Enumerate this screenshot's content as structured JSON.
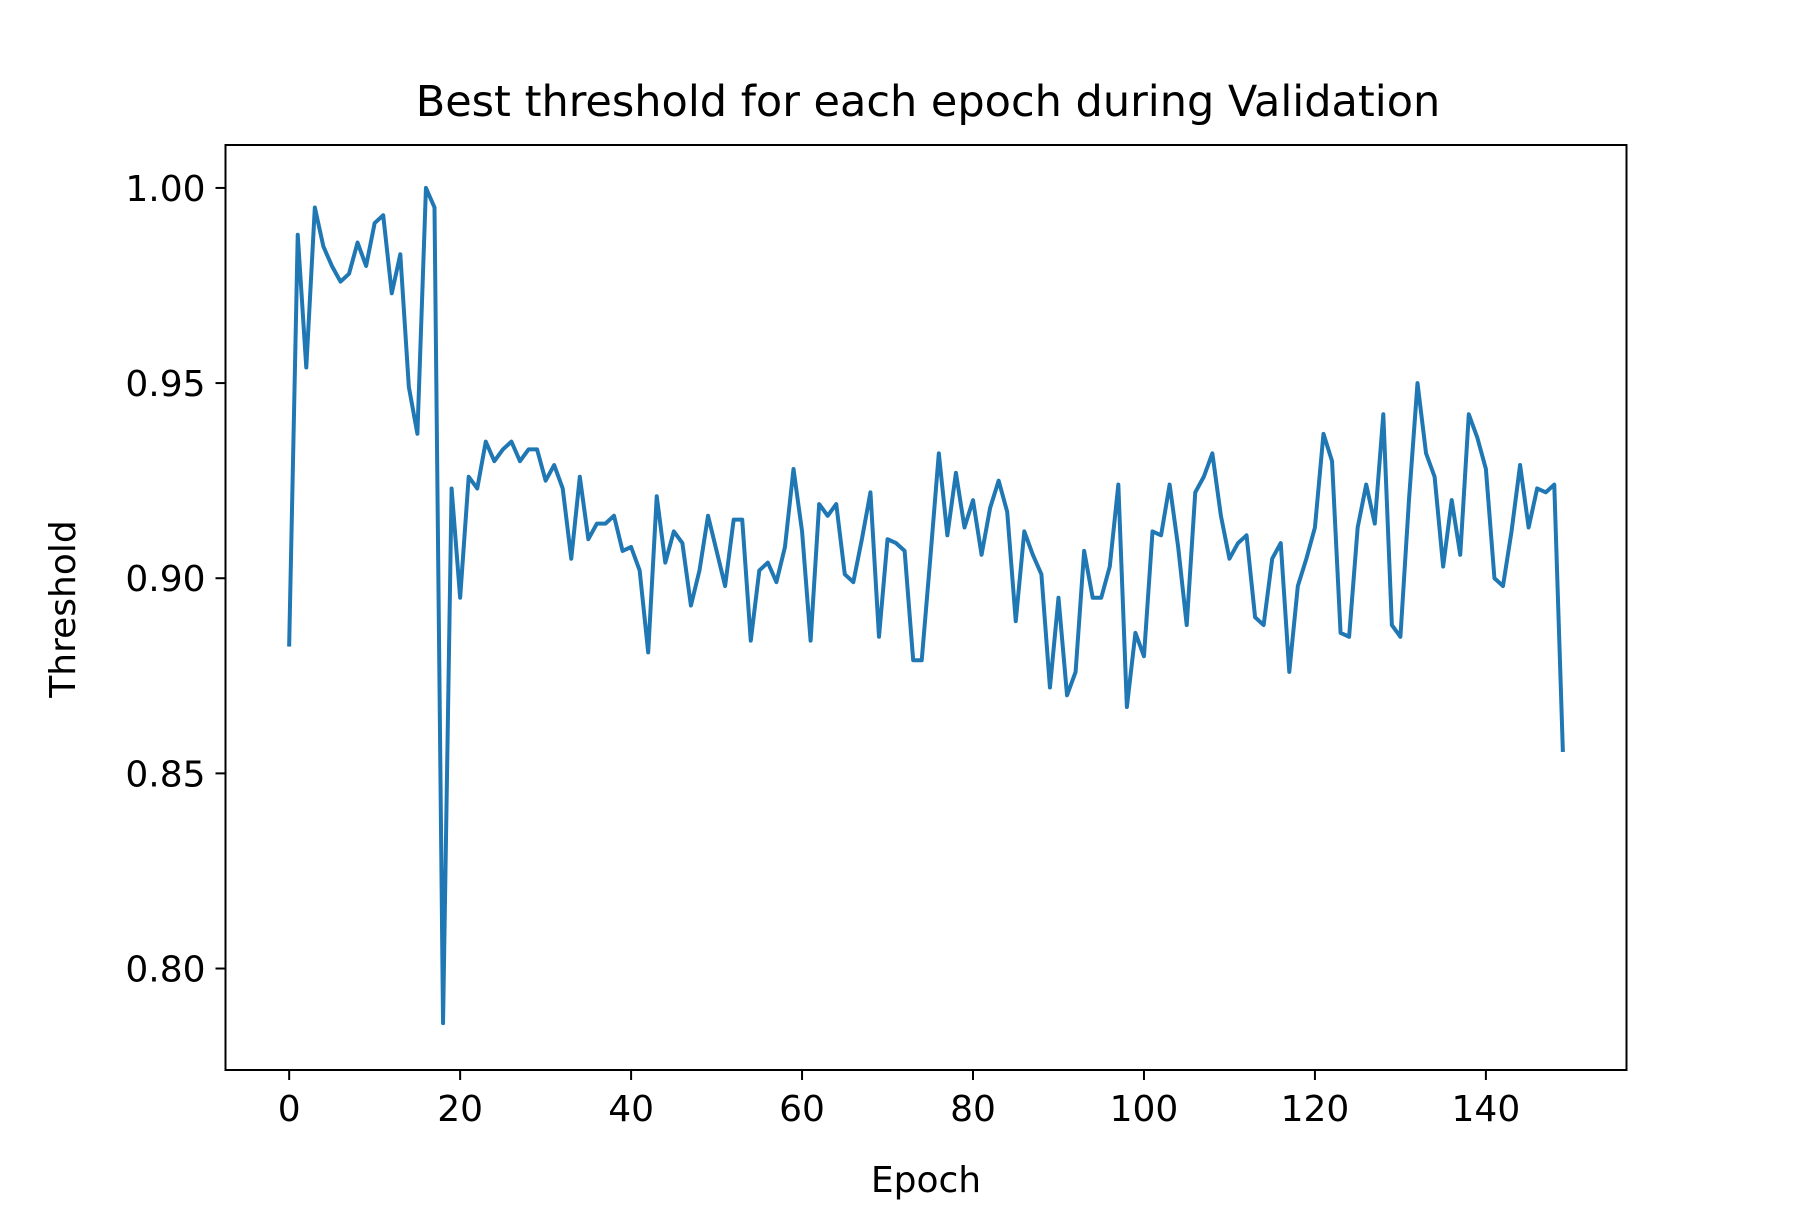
{
  "chart_data": {
    "type": "line",
    "title": "Best threshold for each epoch during Validation",
    "xlabel": "Epoch",
    "ylabel": "Threshold",
    "xlim": [
      -7.45,
      156.45
    ],
    "ylim": [
      0.774,
      1.011
    ],
    "xticks": [
      0,
      20,
      40,
      60,
      80,
      100,
      120,
      140
    ],
    "xtick_labels": [
      "0",
      "20",
      "40",
      "60",
      "80",
      "100",
      "120",
      "140"
    ],
    "yticks": [
      0.8,
      0.85,
      0.9,
      0.95,
      1.0
    ],
    "ytick_labels": [
      "0.80",
      "0.85",
      "0.90",
      "0.95",
      "1.00"
    ],
    "grid": false,
    "legend": "none",
    "series": [
      {
        "color": "#1f77b4",
        "x": [
          0,
          1,
          2,
          3,
          4,
          5,
          6,
          7,
          8,
          9,
          10,
          11,
          12,
          13,
          14,
          15,
          16,
          17,
          18,
          19,
          20,
          21,
          22,
          23,
          24,
          25,
          26,
          27,
          28,
          29,
          30,
          31,
          32,
          33,
          34,
          35,
          36,
          37,
          38,
          39,
          40,
          41,
          42,
          43,
          44,
          45,
          46,
          47,
          48,
          49,
          50,
          51,
          52,
          53,
          54,
          55,
          56,
          57,
          58,
          59,
          60,
          61,
          62,
          63,
          64,
          65,
          66,
          67,
          68,
          69,
          70,
          71,
          72,
          73,
          74,
          75,
          76,
          77,
          78,
          79,
          80,
          81,
          82,
          83,
          84,
          85,
          86,
          87,
          88,
          89,
          90,
          91,
          92,
          93,
          94,
          95,
          96,
          97,
          98,
          99,
          100,
          101,
          102,
          103,
          104,
          105,
          106,
          107,
          108,
          109,
          110,
          111,
          112,
          113,
          114,
          115,
          116,
          117,
          118,
          119,
          120,
          121,
          122,
          123,
          124,
          125,
          126,
          127,
          128,
          129,
          130,
          131,
          132,
          133,
          134,
          135,
          136,
          137,
          138,
          139,
          140,
          141,
          142,
          143,
          144,
          145,
          146,
          147,
          148,
          149
        ],
        "values": [
          0.883,
          0.988,
          0.954,
          0.995,
          0.985,
          0.98,
          0.976,
          0.978,
          0.986,
          0.98,
          0.991,
          0.993,
          0.973,
          0.983,
          0.949,
          0.937,
          1.0,
          0.995,
          0.786,
          0.923,
          0.895,
          0.926,
          0.923,
          0.935,
          0.93,
          0.933,
          0.935,
          0.93,
          0.933,
          0.933,
          0.925,
          0.929,
          0.923,
          0.905,
          0.926,
          0.91,
          0.914,
          0.914,
          0.916,
          0.907,
          0.908,
          0.902,
          0.881,
          0.921,
          0.904,
          0.912,
          0.909,
          0.893,
          0.902,
          0.916,
          0.907,
          0.898,
          0.915,
          0.915,
          0.884,
          0.902,
          0.904,
          0.899,
          0.908,
          0.928,
          0.912,
          0.884,
          0.919,
          0.916,
          0.919,
          0.901,
          0.899,
          0.91,
          0.922,
          0.885,
          0.91,
          0.909,
          0.907,
          0.879,
          0.879,
          0.905,
          0.932,
          0.911,
          0.927,
          0.913,
          0.92,
          0.906,
          0.918,
          0.925,
          0.917,
          0.889,
          0.912,
          0.906,
          0.901,
          0.872,
          0.895,
          0.87,
          0.876,
          0.907,
          0.895,
          0.895,
          0.903,
          0.924,
          0.867,
          0.886,
          0.88,
          0.912,
          0.911,
          0.924,
          0.908,
          0.888,
          0.922,
          0.926,
          0.932,
          0.916,
          0.905,
          0.909,
          0.911,
          0.89,
          0.888,
          0.905,
          0.909,
          0.876,
          0.898,
          0.905,
          0.913,
          0.937,
          0.93,
          0.886,
          0.885,
          0.913,
          0.924,
          0.914,
          0.942,
          0.888,
          0.885,
          0.92,
          0.95,
          0.932,
          0.926,
          0.903,
          0.92,
          0.906,
          0.942,
          0.936,
          0.928,
          0.9,
          0.898,
          0.912,
          0.929,
          0.913,
          0.923,
          0.922,
          0.924,
          0.856
        ]
      }
    ]
  }
}
